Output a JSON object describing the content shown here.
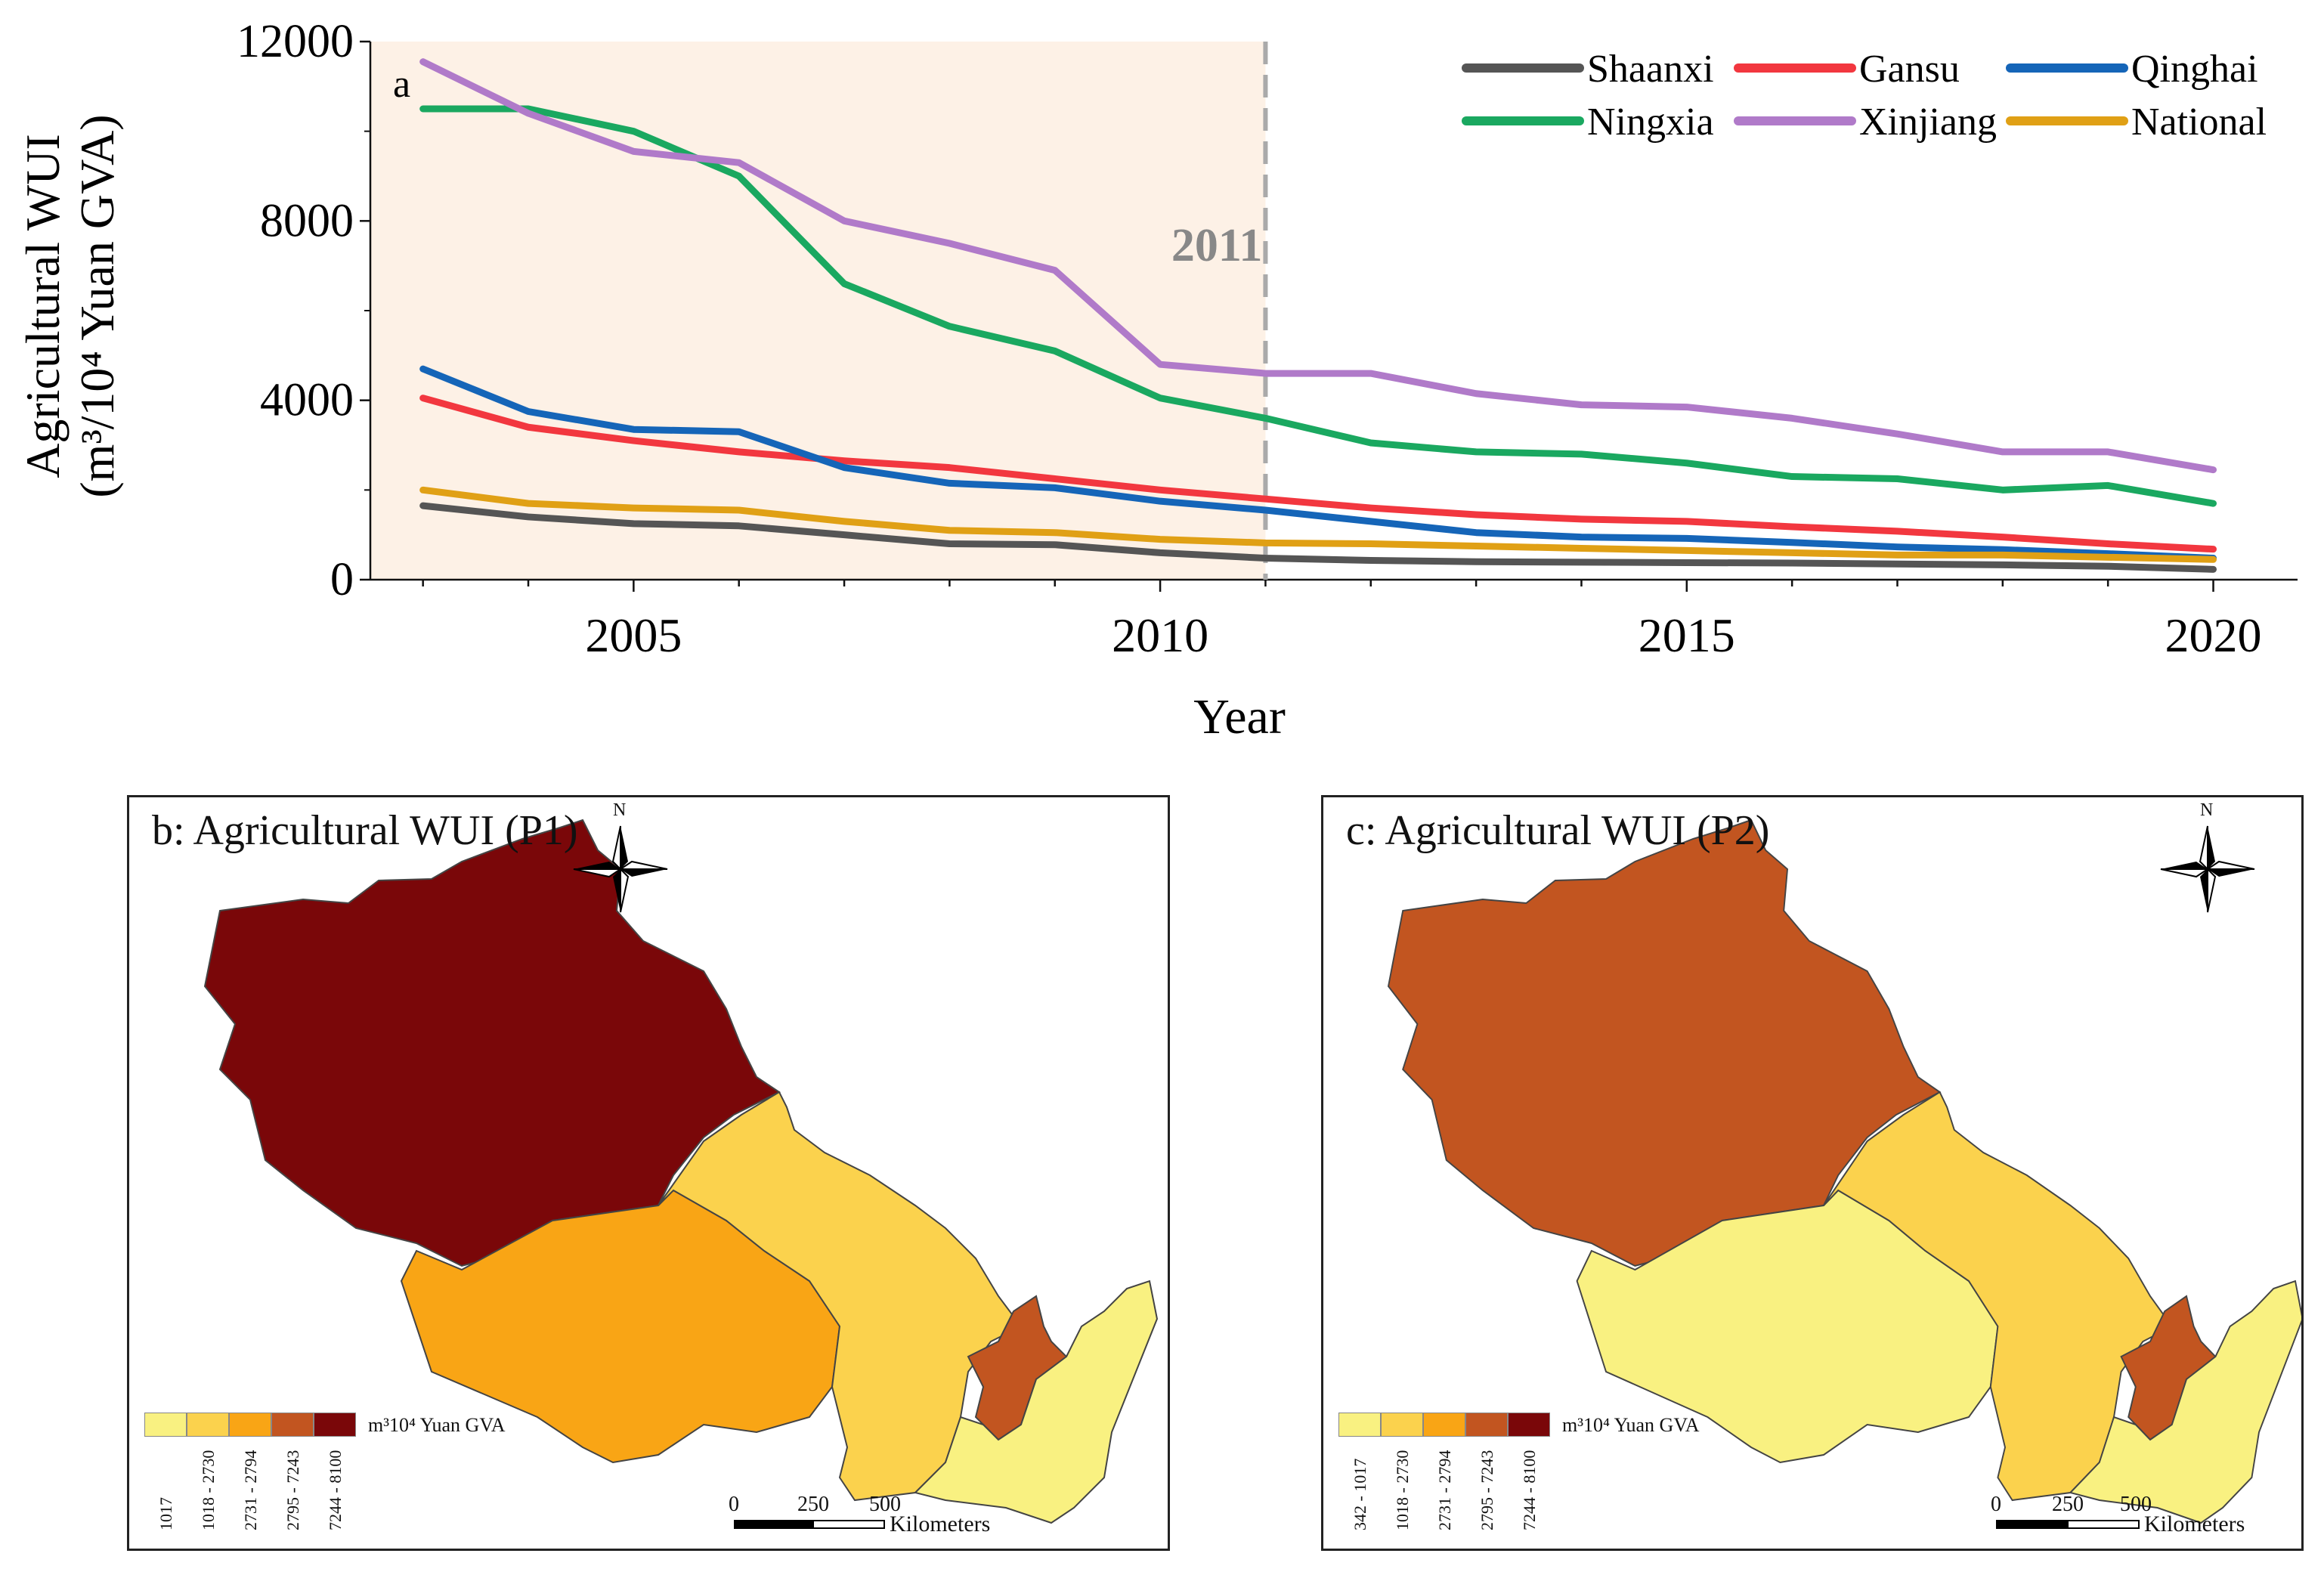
{
  "chart_data": {
    "type": "line",
    "panel_label": "a",
    "xlabel": "Year",
    "ylabel_line1": "Agricultural WUI",
    "ylabel_line2": "(m³/10⁴ Yuan GVA)",
    "x": [
      2003,
      2004,
      2005,
      2006,
      2007,
      2008,
      2009,
      2010,
      2011,
      2012,
      2013,
      2014,
      2015,
      2016,
      2017,
      2018,
      2019,
      2020
    ],
    "xlim": [
      2002.5,
      2020.8
    ],
    "ylim": [
      0,
      12000
    ],
    "x_ticks": [
      "2005",
      "2010",
      "2015",
      "2020"
    ],
    "y_ticks": [
      "0",
      "4000",
      "8000",
      "12000"
    ],
    "annotation": {
      "text": "2011",
      "x": 2011,
      "style": "dashed vertical line",
      "shaded_region": [
        2002.5,
        2011
      ]
    },
    "series": [
      {
        "name": "Shaanxi",
        "color": "#555555",
        "values": [
          1650,
          1400,
          1250,
          1200,
          1000,
          800,
          780,
          600,
          480,
          430,
          400,
          390,
          380,
          370,
          350,
          330,
          300,
          230
        ]
      },
      {
        "name": "Gansu",
        "color": "#f2373f",
        "values": [
          4050,
          3400,
          3100,
          2850,
          2650,
          2500,
          2250,
          2000,
          1800,
          1600,
          1450,
          1350,
          1300,
          1180,
          1080,
          950,
          800,
          680
        ]
      },
      {
        "name": "Qinghai",
        "color": "#1565b8",
        "values": [
          4700,
          3750,
          3350,
          3300,
          2500,
          2150,
          2050,
          1750,
          1550,
          1300,
          1050,
          950,
          920,
          830,
          730,
          670,
          580,
          480
        ]
      },
      {
        "name": "Ningxia",
        "color": "#1aa860",
        "values": [
          10500,
          10500,
          10000,
          9000,
          6600,
          5650,
          5100,
          4050,
          3600,
          3050,
          2850,
          2800,
          2600,
          2300,
          2250,
          2000,
          2100,
          1700
        ]
      },
      {
        "name": "Xinjiang",
        "color": "#b07ac9",
        "values": [
          11550,
          10400,
          9550,
          9300,
          8000,
          7500,
          6900,
          4800,
          4600,
          4600,
          4150,
          3900,
          3850,
          3600,
          3250,
          2850,
          2850,
          2450
        ]
      },
      {
        "name": "National",
        "color": "#e0a015",
        "values": [
          2000,
          1700,
          1600,
          1550,
          1300,
          1100,
          1050,
          900,
          820,
          800,
          750,
          700,
          650,
          600,
          550,
          550,
          500,
          450
        ]
      }
    ]
  },
  "maps": [
    {
      "title": "b: Agricultural WUI (P1)",
      "north_label": "N",
      "legend_unit": "m³10⁴ Yuan GVA",
      "legend_colors": [
        "#f9f181",
        "#fbd24d",
        "#f9a515",
        "#c25520",
        "#7a0709"
      ],
      "legend_labels": [
        "1017",
        "1018 - 2730",
        "2731 - 2794",
        "2795 - 7243",
        "7244 - 8100"
      ],
      "scale_ticks": [
        "0",
        "250",
        "500"
      ],
      "scale_unit": "Kilometers",
      "region_colors": {
        "xinjiang": "#7a0709",
        "qinghai": "#f9a515",
        "gansu": "#fbd24d",
        "ningxia": "#c25520",
        "shaanxi": "#f9f181"
      }
    },
    {
      "title": "c: Agricultural WUI (P2)",
      "north_label": "N",
      "legend_unit": "m³10⁴ Yuan GVA",
      "legend_colors": [
        "#f9f181",
        "#fbd24d",
        "#f9a515",
        "#c25520",
        "#7a0709"
      ],
      "legend_labels": [
        "342 - 1017",
        "1018 - 2730",
        "2731 - 2794",
        "2795 - 7243",
        "7244 - 8100"
      ],
      "scale_ticks": [
        "0",
        "250",
        "500"
      ],
      "scale_unit": "Kilometers",
      "region_colors": {
        "xinjiang": "#c25520",
        "qinghai": "#f9f181",
        "gansu": "#fbd24d",
        "ningxia": "#c25520",
        "shaanxi": "#f9f181"
      }
    }
  ]
}
